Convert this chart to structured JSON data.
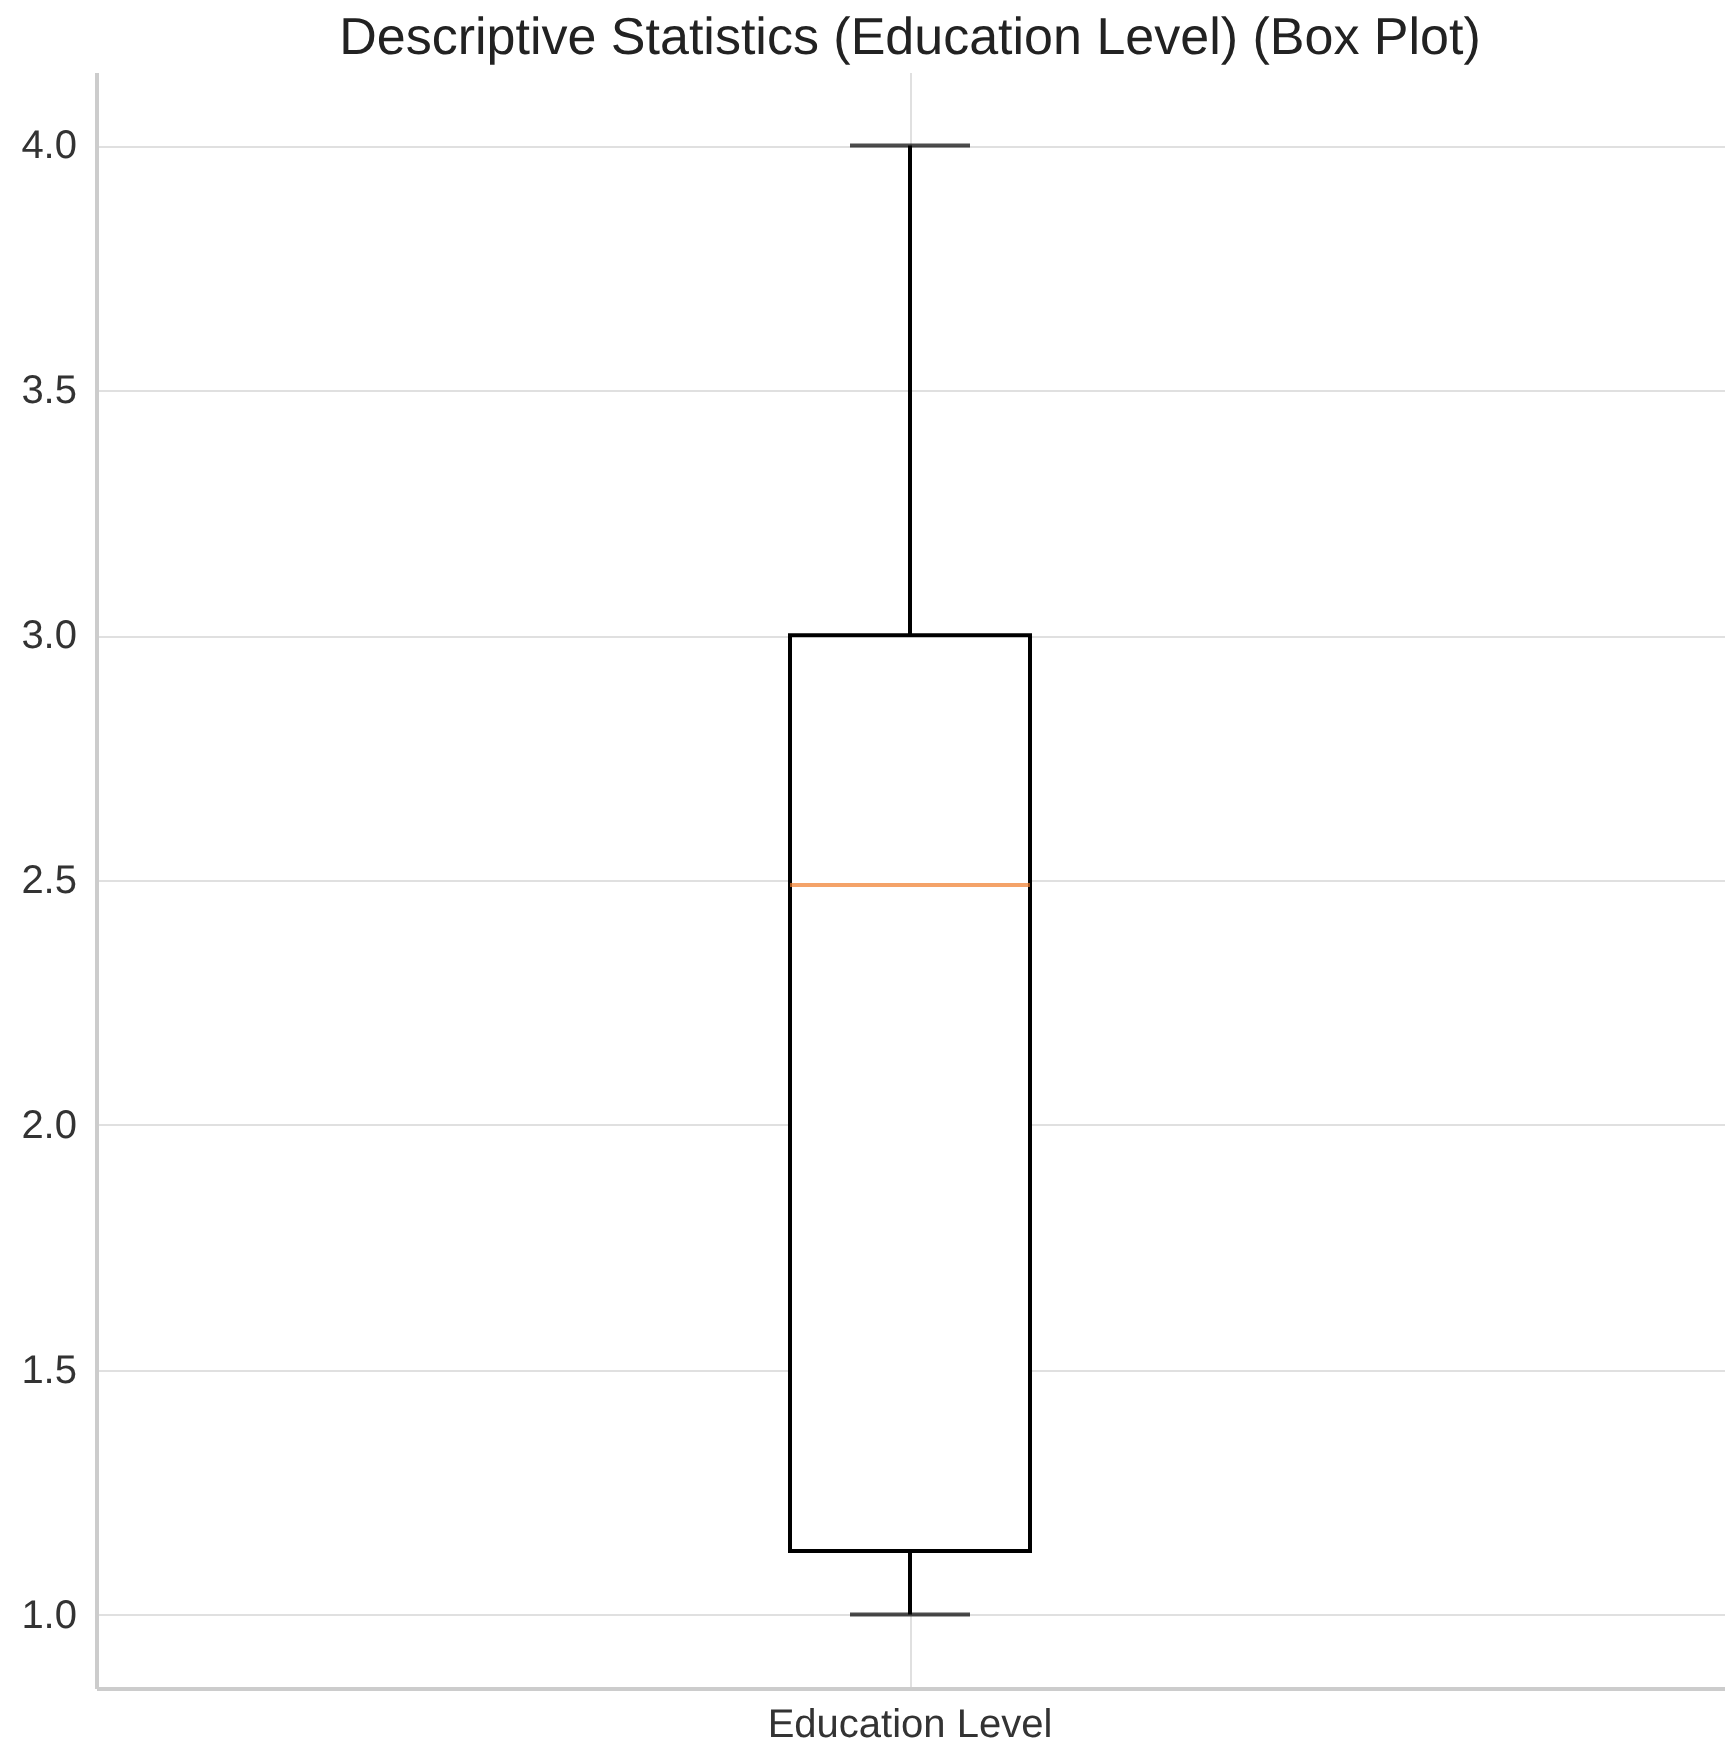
{
  "chart_data": {
    "type": "box",
    "title": "Descriptive Statistics (Education Level) (Box Plot)",
    "categories": [
      "Education Level"
    ],
    "boxes": [
      {
        "low": 1.0,
        "q1": 1.13,
        "median": 2.49,
        "q3": 3.0,
        "high": 4.0
      }
    ],
    "color": "#000000",
    "ylim": [
      0.85,
      4.15
    ],
    "yticks": [
      {
        "value": 1,
        "label": "1.0"
      },
      1.5,
      {
        "value": 2,
        "label": "2.0"
      },
      2.5,
      {
        "value": 3,
        "label": "3.0"
      },
      3.5,
      {
        "value": 4,
        "label": "4.0"
      }
    ],
    "grid": true
  }
}
